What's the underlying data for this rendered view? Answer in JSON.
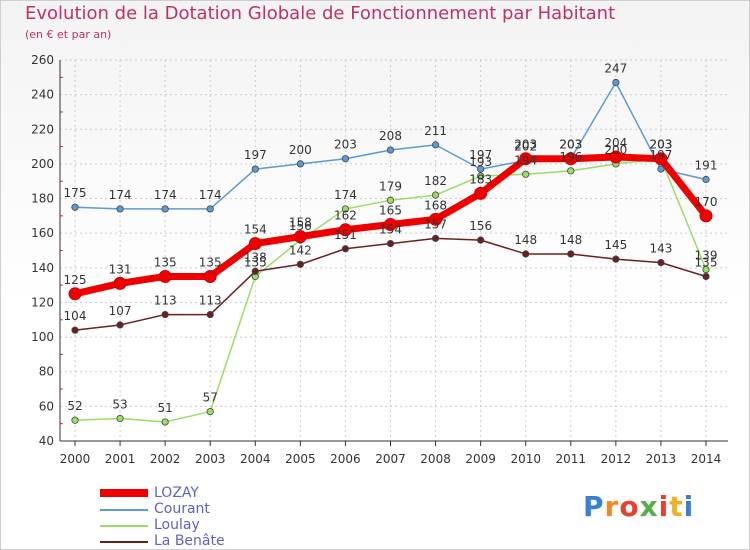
{
  "chart_data": {
    "type": "line",
    "title": "Evolution de la Dotation Globale de Fonctionnement par Habitant",
    "subtitle": "(en € et par an)",
    "x": [
      "2000",
      "2001",
      "2002",
      "2003",
      "2004",
      "2005",
      "2006",
      "2007",
      "2008",
      "2009",
      "2010",
      "2011",
      "2012",
      "2013",
      "2014"
    ],
    "yticks": [
      40,
      60,
      80,
      100,
      120,
      140,
      160,
      180,
      200,
      220,
      240,
      260
    ],
    "ylim": [
      40,
      260
    ],
    "grid": true,
    "legend_position": "bottom-left",
    "series": [
      {
        "name": "LOZAY",
        "color": "#ee0000",
        "values": [
          125,
          131,
          135,
          135,
          154,
          158,
          162,
          165,
          168,
          183,
          203,
          203,
          204,
          203,
          170
        ]
      },
      {
        "name": "Courant",
        "color": "#5b9bd5",
        "values": [
          175,
          174,
          174,
          174,
          197,
          200,
          203,
          208,
          211,
          197,
          202,
          203,
          247,
          197,
          191
        ]
      },
      {
        "name": "Loulay",
        "color": "#99dd66",
        "values": [
          52,
          53,
          51,
          57,
          135,
          156,
          174,
          179,
          182,
          193,
          194,
          196,
          200,
          203,
          139
        ]
      },
      {
        "name": "La Benâte",
        "color": "#6b2020",
        "values": [
          104,
          107,
          113,
          113,
          138,
          142,
          151,
          154,
          157,
          156,
          148,
          148,
          145,
          143,
          135
        ]
      }
    ]
  },
  "logo": {
    "text": "Proxiti",
    "letters": [
      "P",
      "r",
      "o",
      "x",
      "i",
      "t",
      "i"
    ]
  }
}
